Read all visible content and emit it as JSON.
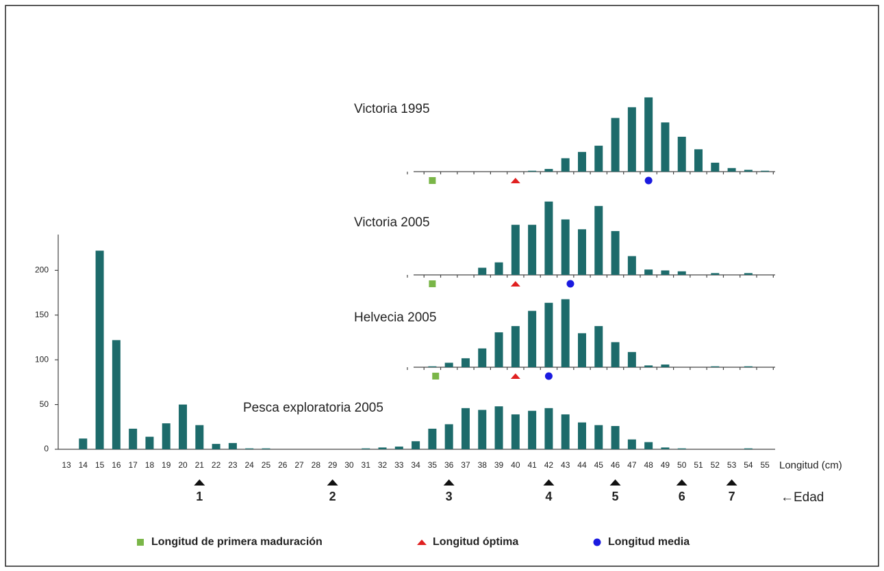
{
  "chart_data": [
    {
      "type": "bar",
      "title": "Pesca exploratoria 2005",
      "x_label": "Longitud (cm)",
      "color": "#1d6b6b",
      "categories": [
        13,
        14,
        15,
        16,
        17,
        18,
        19,
        20,
        21,
        22,
        23,
        24,
        25,
        26,
        27,
        28,
        29,
        30,
        31,
        32,
        33,
        34,
        35,
        36,
        37,
        38,
        39,
        40,
        41,
        42,
        43,
        44,
        45,
        46,
        47,
        48,
        49,
        50,
        51,
        52,
        53,
        54,
        55
      ],
      "values": [
        0,
        12,
        222,
        122,
        23,
        14,
        29,
        50,
        27,
        6,
        7,
        1,
        1,
        0,
        0,
        0,
        0,
        0,
        1,
        2,
        3,
        9,
        23,
        28,
        46,
        44,
        48,
        39,
        43,
        46,
        39,
        30,
        27,
        26,
        11,
        8,
        2,
        1,
        0,
        0,
        0,
        1,
        0
      ],
      "ylim": [
        0,
        240
      ],
      "yticks": [
        0,
        50,
        100,
        150,
        200
      ]
    },
    {
      "type": "bar",
      "title": "Victoria 1995",
      "color": "#1d6b6b",
      "x": [
        34,
        35,
        36,
        37,
        38,
        39,
        40,
        41,
        42,
        43,
        44,
        45,
        46,
        47,
        48,
        49,
        50,
        51,
        52,
        53,
        54,
        55
      ],
      "values": [
        0,
        0,
        0,
        0,
        0,
        0,
        0,
        1,
        3,
        15,
        22,
        29,
        60,
        72,
        83,
        55,
        39,
        25,
        10,
        4,
        2,
        1
      ],
      "markers": [
        35,
        40,
        48
      ]
    },
    {
      "type": "bar",
      "title": "Victoria 2005",
      "color": "#1d6b6b",
      "x": [
        34,
        35,
        36,
        37,
        38,
        39,
        40,
        41,
        42,
        43,
        44,
        45,
        46,
        47,
        48,
        49,
        50,
        51,
        52,
        53,
        54,
        55
      ],
      "values": [
        0,
        0,
        0,
        0,
        8,
        14,
        56,
        56,
        82,
        62,
        51,
        77,
        49,
        21,
        6,
        5,
        4,
        0,
        2,
        0,
        2,
        0
      ],
      "markers": [
        35,
        40,
        43.3
      ]
    },
    {
      "type": "bar",
      "title": "Helvecia 2005",
      "color": "#1d6b6b",
      "x": [
        34,
        35,
        36,
        37,
        38,
        39,
        40,
        41,
        42,
        43,
        44,
        45,
        46,
        47,
        48,
        49,
        50,
        51,
        52,
        53,
        54,
        55
      ],
      "values": [
        0,
        1,
        5,
        10,
        21,
        39,
        46,
        63,
        72,
        76,
        38,
        46,
        28,
        17,
        2,
        3,
        0,
        0,
        1,
        0,
        1,
        0
      ],
      "markers": [
        35.2,
        40,
        42
      ]
    }
  ],
  "ages": {
    "label": "←Edad",
    "items": [
      {
        "age": 1,
        "length": 21
      },
      {
        "age": 2,
        "length": 29
      },
      {
        "age": 3,
        "length": 36
      },
      {
        "age": 4,
        "length": 42
      },
      {
        "age": 5,
        "length": 46
      },
      {
        "age": 6,
        "length": 50
      },
      {
        "age": 7,
        "length": 53
      }
    ]
  },
  "legend": [
    {
      "name": "Longitud de primera maduración",
      "color": "#7ab648",
      "shape": "square"
    },
    {
      "name": "Longitud óptima",
      "color": "#e02020",
      "shape": "triangle"
    },
    {
      "name": "Longitud media",
      "color": "#1a1ae0",
      "shape": "circle"
    }
  ]
}
